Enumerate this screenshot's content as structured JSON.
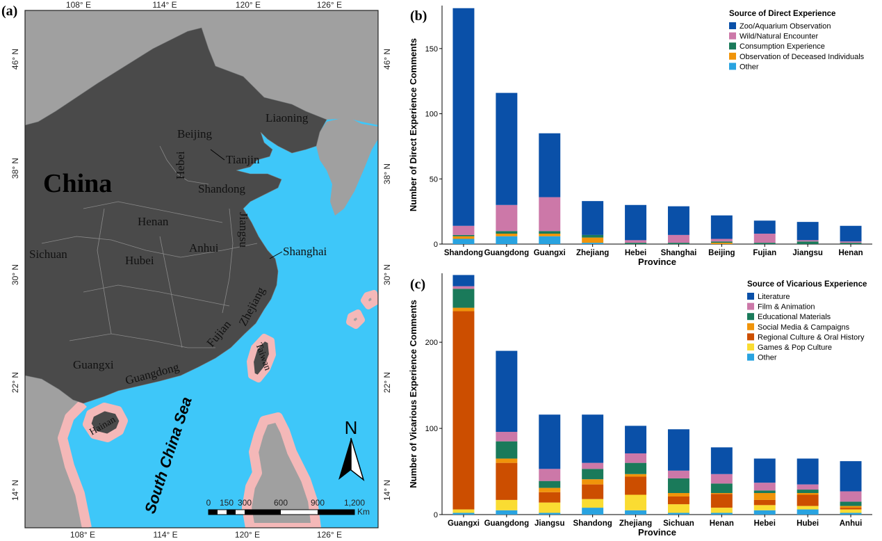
{
  "panel_labels": {
    "a": "(a)",
    "b": "(b)",
    "c": "(c)"
  },
  "map": {
    "coords_top": [
      "108° E",
      "114° E",
      "120° E",
      "126° E"
    ],
    "coords_bottom": [
      "108° E",
      "114° E",
      "120° E",
      "126° E"
    ],
    "coords_left": [
      "46° N",
      "38° N",
      "30° N",
      "22° N",
      "14° N"
    ],
    "coords_right": [
      "46° N",
      "38° N",
      "30° N",
      "22° N",
      "14° N"
    ],
    "country": "China",
    "sea": "South China Sea",
    "places": {
      "liaoning": "Liaoning",
      "beijing": "Beijing",
      "tianjin": "Tianjin",
      "hebei": "Hebei",
      "shandong": "Shandong",
      "henan": "Henan",
      "jiangsu": "Jiangsu",
      "sichuan": "Sichuan",
      "anhui": "Anhui",
      "shanghai": "Shanghai",
      "hubei": "Hubei",
      "zhejiang": "Zhejiang",
      "fujian": "Fujian",
      "guangxi": "Guangxi",
      "guangdong": "Guangdong",
      "taiwan": "Taiwan",
      "hainan": "Hainan"
    },
    "north_label": "N",
    "scale_labels": [
      "0",
      "150",
      "300",
      "600",
      "900",
      "1,200"
    ],
    "scale_unit": "Km",
    "colors": {
      "china": "#4a4a4a",
      "neighbor": "#a0a0a0",
      "sea": "#3ec7f9",
      "buffer": "#f4b8b8"
    }
  },
  "chart_data": [
    {
      "type": "bar",
      "stacked": true,
      "panel": "(b)",
      "title": "",
      "xlabel": "Province",
      "ylabel": "Number of Direct Experience Comments",
      "ylim": [
        0,
        183
      ],
      "yticks": [
        0,
        50,
        100,
        150
      ],
      "legend_title": "Source of Direct Experience",
      "legend_position": "top-right",
      "categories": [
        "Shandong",
        "Guangdong",
        "Guangxi",
        "Zhejiang",
        "Hebei",
        "Shanghai",
        "Beijing",
        "Fujian",
        "Jiangsu",
        "Henan"
      ],
      "series": [
        {
          "name": "Other",
          "color": "#29a3e0",
          "values": [
            4,
            6,
            6,
            1,
            0,
            0,
            0,
            0,
            0,
            0
          ]
        },
        {
          "name": "Observation of Deceased Individuals",
          "color": "#f0940a",
          "values": [
            2,
            2,
            2,
            4,
            0,
            0,
            1,
            0,
            0,
            0
          ]
        },
        {
          "name": "Consumption Experience",
          "color": "#1a7a5a",
          "values": [
            1,
            2,
            2,
            2,
            1,
            1,
            1,
            1,
            2,
            1
          ]
        },
        {
          "name": "Wild/Natural Encounter",
          "color": "#cc78a8",
          "values": [
            7,
            20,
            26,
            0,
            2,
            6,
            2,
            7,
            1,
            1
          ]
        },
        {
          "name": "Zoo/Aquarium Observation",
          "color": "#0a50a8",
          "values": [
            167,
            86,
            49,
            26,
            27,
            22,
            18,
            10,
            14,
            12
          ]
        }
      ]
    },
    {
      "type": "bar",
      "stacked": true,
      "panel": "(c)",
      "title": "",
      "xlabel": "Province",
      "ylabel": "Number of Vicarious Experience Comments",
      "ylim": [
        0,
        280
      ],
      "yticks": [
        0,
        100,
        200
      ],
      "legend_title": "Source of Vicarious Experience",
      "legend_position": "top-right",
      "categories": [
        "Guangxi",
        "Guangdong",
        "Jiangsu",
        "Shandong",
        "Zhejiang",
        "Sichuan",
        "Henan",
        "Hebei",
        "Hubei",
        "Anhui"
      ],
      "series": [
        {
          "name": "Other",
          "color": "#29a3e0",
          "values": [
            2,
            5,
            2,
            8,
            5,
            2,
            2,
            5,
            6,
            2
          ]
        },
        {
          "name": "Games & Pop Culture",
          "color": "#fadc32",
          "values": [
            4,
            12,
            12,
            10,
            18,
            10,
            6,
            6,
            4,
            4
          ]
        },
        {
          "name": "Regional Culture & Oral History",
          "color": "#cc4e00",
          "values": [
            230,
            43,
            12,
            17,
            21,
            9,
            16,
            6,
            13,
            2
          ]
        },
        {
          "name": "Social Media & Campaigns",
          "color": "#f0940a",
          "values": [
            4,
            5,
            5,
            6,
            3,
            4,
            1,
            8,
            2,
            2
          ]
        },
        {
          "name": "Educational Materials",
          "color": "#1a7a5a",
          "values": [
            22,
            20,
            8,
            12,
            13,
            17,
            11,
            3,
            4,
            5
          ]
        },
        {
          "name": "Film & Animation",
          "color": "#cc78a8",
          "values": [
            3,
            11,
            14,
            7,
            11,
            9,
            11,
            9,
            6,
            12
          ]
        },
        {
          "name": "Literature",
          "color": "#0a50a8",
          "values": [
            13,
            94,
            63,
            56,
            32,
            48,
            31,
            28,
            30,
            35
          ]
        }
      ]
    }
  ]
}
